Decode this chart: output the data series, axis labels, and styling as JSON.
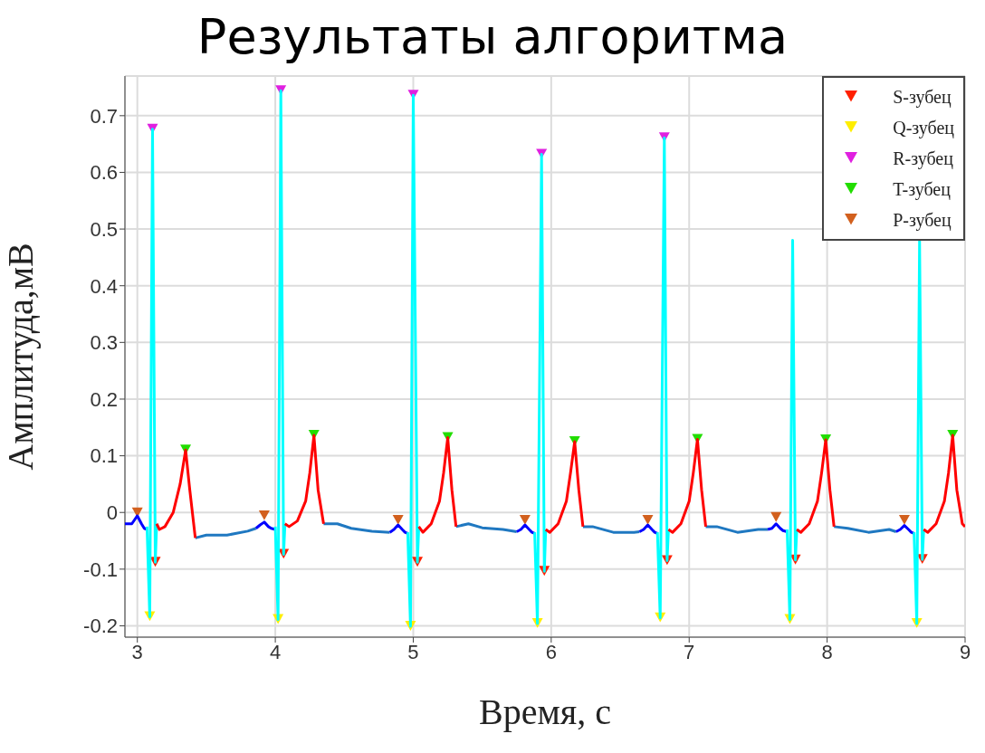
{
  "chart_data": {
    "type": "scatter",
    "title": "Результаты алгоритма",
    "xlabel": "Время, с",
    "ylabel": "Амплитуда,мВ",
    "xlim": [
      2.91,
      9
    ],
    "xticks": [
      3,
      4,
      5,
      6,
      7,
      8,
      9
    ],
    "ylim": [
      -0.22,
      0.77
    ],
    "yticks": [
      -0.2,
      -0.1,
      0,
      0.1,
      0.2,
      0.3,
      0.4,
      0.5,
      0.6,
      0.7
    ],
    "grid": true,
    "legend": "top right",
    "marker": "triangle",
    "series": [
      {
        "type": "line",
        "marker": "none",
        "color": "#1f78c1",
        "x": [
          3.42,
          3.5,
          3.65,
          3.8,
          3.86
        ],
        "values": [
          -0.045,
          -0.04,
          -0.04,
          -0.033,
          -0.028
        ]
      },
      {
        "type": "line",
        "marker": "none",
        "color": "#1f78c1",
        "x": [
          4.35,
          4.45,
          4.55,
          4.7,
          4.83
        ],
        "values": [
          -0.02,
          -0.02,
          -0.028,
          -0.033,
          -0.035
        ]
      },
      {
        "type": "line",
        "marker": "none",
        "color": "#1f78c1",
        "x": [
          5.31,
          5.4,
          5.5,
          5.65,
          5.75
        ],
        "values": [
          -0.025,
          -0.02,
          -0.027,
          -0.03,
          -0.034
        ]
      },
      {
        "type": "line",
        "marker": "none",
        "color": "#1f78c1",
        "x": [
          6.23,
          6.3,
          6.45,
          6.6,
          6.64
        ],
        "values": [
          -0.025,
          -0.025,
          -0.035,
          -0.035,
          -0.034
        ]
      },
      {
        "type": "line",
        "marker": "none",
        "color": "#1f78c1",
        "x": [
          7.12,
          7.2,
          7.35,
          7.5,
          7.57
        ],
        "values": [
          -0.025,
          -0.025,
          -0.035,
          -0.03,
          -0.03
        ]
      },
      {
        "type": "line",
        "marker": "none",
        "color": "#1f78c1",
        "x": [
          8.05,
          8.15,
          8.3,
          8.45,
          8.5
        ],
        "values": [
          -0.025,
          -0.028,
          -0.035,
          -0.03,
          -0.034
        ]
      },
      {
        "type": "line",
        "marker": "none",
        "color": "#0000ff",
        "x": [
          2.91,
          2.96,
          3.0,
          3.03,
          3.05,
          3.07
        ],
        "values": [
          -0.02,
          -0.02,
          -0.006,
          -0.02,
          -0.028,
          -0.03
        ]
      },
      {
        "type": "line",
        "marker": "none",
        "color": "#0000ff",
        "x": [
          3.86,
          3.89,
          3.92,
          3.95,
          3.97,
          4.0
        ],
        "values": [
          -0.028,
          -0.022,
          -0.017,
          -0.025,
          -0.028,
          -0.03
        ]
      },
      {
        "type": "line",
        "marker": "none",
        "color": "#0000ff",
        "x": [
          4.83,
          4.86,
          4.89,
          4.92,
          4.94,
          4.96
        ],
        "values": [
          -0.035,
          -0.03,
          -0.022,
          -0.03,
          -0.035,
          -0.037
        ]
      },
      {
        "type": "line",
        "marker": "none",
        "color": "#0000ff",
        "x": [
          5.75,
          5.78,
          5.81,
          5.84,
          5.86,
          5.88
        ],
        "values": [
          -0.034,
          -0.03,
          -0.022,
          -0.03,
          -0.035,
          -0.037
        ]
      },
      {
        "type": "line",
        "marker": "none",
        "color": "#0000ff",
        "x": [
          6.64,
          6.67,
          6.7,
          6.73,
          6.75,
          6.77
        ],
        "values": [
          -0.034,
          -0.03,
          -0.022,
          -0.03,
          -0.035,
          -0.037
        ]
      },
      {
        "type": "line",
        "marker": "none",
        "color": "#0000ff",
        "x": [
          7.57,
          7.6,
          7.63,
          7.66,
          7.68,
          7.71
        ],
        "values": [
          -0.03,
          -0.028,
          -0.02,
          -0.028,
          -0.032,
          -0.034
        ]
      },
      {
        "type": "line",
        "marker": "none",
        "color": "#0000ff",
        "x": [
          8.5,
          8.53,
          8.56,
          8.59,
          8.61,
          8.63
        ],
        "values": [
          -0.034,
          -0.03,
          -0.023,
          -0.03,
          -0.035,
          -0.037
        ]
      },
      {
        "type": "line",
        "marker": "none",
        "color": "#00ffff",
        "x": [
          3.07,
          3.09,
          3.11,
          3.13,
          3.14
        ],
        "values": [
          -0.025,
          -0.184,
          0.676,
          -0.088,
          -0.02
        ]
      },
      {
        "type": "line",
        "marker": "none",
        "color": "#00ffff",
        "x": [
          4.0,
          4.02,
          4.04,
          4.06,
          4.07
        ],
        "values": [
          -0.025,
          -0.189,
          0.744,
          -0.074,
          -0.02
        ]
      },
      {
        "type": "line",
        "marker": "none",
        "color": "#00ffff",
        "x": [
          4.96,
          4.98,
          5.0,
          5.03,
          5.04
        ],
        "values": [
          -0.035,
          -0.201,
          0.736,
          -0.088,
          -0.025
        ]
      },
      {
        "type": "line",
        "marker": "none",
        "color": "#00ffff",
        "x": [
          5.88,
          5.9,
          5.93,
          5.95,
          5.96
        ],
        "values": [
          -0.035,
          -0.196,
          0.632,
          -0.104,
          -0.03
        ]
      },
      {
        "type": "line",
        "marker": "none",
        "color": "#00ffff",
        "x": [
          6.77,
          6.79,
          6.82,
          6.84,
          6.85
        ],
        "values": [
          -0.035,
          -0.186,
          0.661,
          -0.085,
          -0.03
        ]
      },
      {
        "type": "line",
        "marker": "none",
        "color": "#00ffff",
        "x": [
          7.71,
          7.73,
          7.75,
          7.77,
          7.78
        ],
        "values": [
          -0.03,
          -0.189,
          0.48,
          -0.084,
          -0.03
        ]
      },
      {
        "type": "line",
        "marker": "none",
        "color": "#00ffff",
        "x": [
          8.63,
          8.65,
          8.67,
          8.69,
          8.7
        ],
        "values": [
          -0.035,
          -0.196,
          0.48,
          -0.083,
          -0.03
        ]
      },
      {
        "type": "line",
        "marker": "none",
        "color": "#ff0000",
        "x": [
          3.14,
          3.16,
          3.2,
          3.26,
          3.31,
          3.35,
          3.38,
          3.42
        ],
        "values": [
          -0.02,
          -0.03,
          -0.025,
          0.0,
          0.05,
          0.11,
          0.04,
          -0.045
        ]
      },
      {
        "type": "line",
        "marker": "none",
        "color": "#ff0000",
        "x": [
          4.07,
          4.1,
          4.16,
          4.22,
          4.25,
          4.28,
          4.31,
          4.35
        ],
        "values": [
          -0.02,
          -0.025,
          -0.015,
          0.02,
          0.07,
          0.136,
          0.04,
          -0.02
        ]
      },
      {
        "type": "line",
        "marker": "none",
        "color": "#ff0000",
        "x": [
          5.04,
          5.07,
          5.13,
          5.19,
          5.22,
          5.25,
          5.28,
          5.31
        ],
        "values": [
          -0.025,
          -0.035,
          -0.02,
          0.02,
          0.07,
          0.132,
          0.04,
          -0.025
        ]
      },
      {
        "type": "line",
        "marker": "none",
        "color": "#ff0000",
        "x": [
          5.96,
          5.99,
          6.05,
          6.11,
          6.14,
          6.17,
          6.2,
          6.23
        ],
        "values": [
          -0.03,
          -0.035,
          -0.02,
          0.02,
          0.07,
          0.125,
          0.04,
          -0.025
        ]
      },
      {
        "type": "line",
        "marker": "none",
        "color": "#ff0000",
        "x": [
          6.85,
          6.88,
          6.94,
          7.0,
          7.03,
          7.06,
          7.09,
          7.12
        ],
        "values": [
          -0.03,
          -0.035,
          -0.02,
          0.02,
          0.07,
          0.129,
          0.04,
          -0.025
        ]
      },
      {
        "type": "line",
        "marker": "none",
        "color": "#ff0000",
        "x": [
          7.78,
          7.81,
          7.87,
          7.93,
          7.96,
          7.99,
          8.02,
          8.05
        ],
        "values": [
          -0.03,
          -0.035,
          -0.02,
          0.02,
          0.07,
          0.128,
          0.04,
          -0.025
        ]
      },
      {
        "type": "line",
        "marker": "none",
        "color": "#ff0000",
        "x": [
          8.7,
          8.73,
          8.79,
          8.85,
          8.88,
          8.91,
          8.94,
          8.98,
          9.0
        ],
        "values": [
          -0.03,
          -0.035,
          -0.02,
          0.02,
          0.07,
          0.136,
          0.04,
          -0.02,
          -0.025
        ]
      },
      {
        "name": "S-зубец",
        "color": "#ff2000",
        "x": [
          3.13,
          4.06,
          5.03,
          5.95,
          6.84,
          7.77,
          8.69
        ],
        "values": [
          -0.088,
          -0.074,
          -0.088,
          -0.104,
          -0.085,
          -0.084,
          -0.083
        ]
      },
      {
        "name": "Q-зубец",
        "color": "#ffee00",
        "x": [
          3.09,
          4.02,
          4.98,
          5.9,
          6.79,
          7.73,
          8.65
        ],
        "values": [
          -0.184,
          -0.189,
          -0.201,
          -0.196,
          -0.186,
          -0.189,
          -0.196
        ]
      },
      {
        "name": "R-зубец",
        "color": "#e020e0",
        "x": [
          3.11,
          4.04,
          5.0,
          5.93,
          6.82
        ],
        "values": [
          0.676,
          0.744,
          0.736,
          0.632,
          0.661
        ]
      },
      {
        "name": "T-зубец",
        "color": "#22dd00",
        "x": [
          3.35,
          4.28,
          5.25,
          6.17,
          7.06,
          7.99,
          8.91
        ],
        "values": [
          0.11,
          0.136,
          0.132,
          0.125,
          0.129,
          0.128,
          0.136
        ]
      },
      {
        "name": "P-зубец",
        "color": "#d2601e",
        "x": [
          3.0,
          3.92,
          4.89,
          5.81,
          6.7,
          7.63,
          8.56
        ],
        "values": [
          -0.001,
          -0.006,
          -0.014,
          -0.014,
          -0.014,
          -0.009,
          -0.014
        ]
      }
    ]
  }
}
